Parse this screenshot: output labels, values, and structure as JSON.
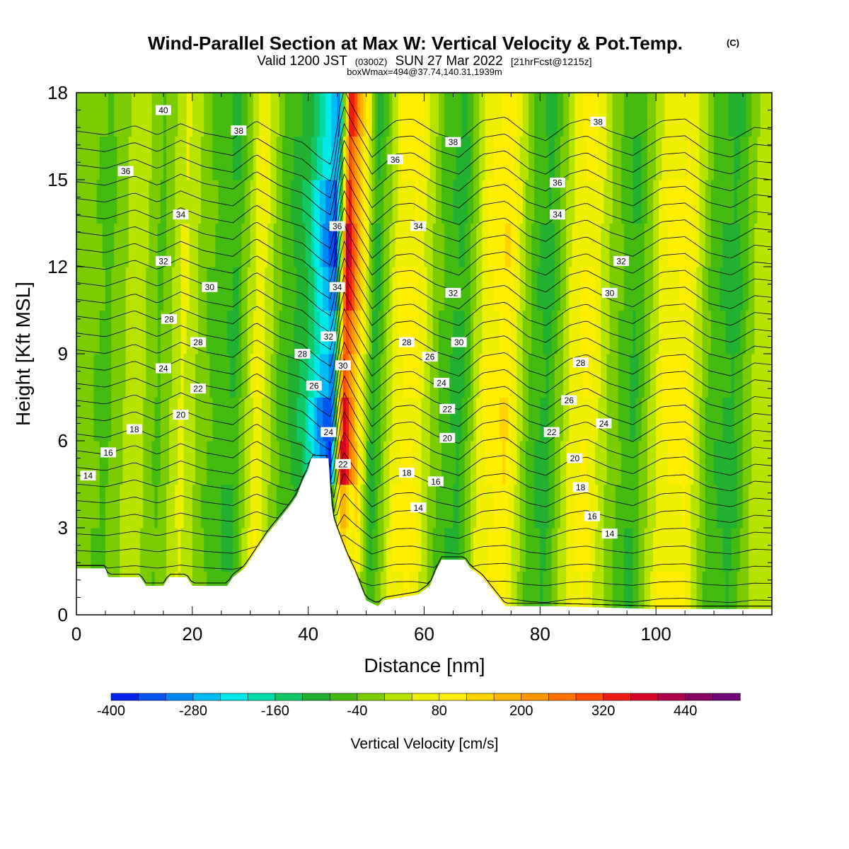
{
  "title": {
    "main": "Wind-Parallel Section at Max W: Vertical Velocity & Pot.Temp.",
    "copyright": "(C)",
    "valid_prefix": "Valid 1200 JST",
    "valid_zulu": "(0300Z)",
    "valid_date": "SUN 27 Mar 2022",
    "forecast": "[21hrFcst@1215z]",
    "boxinfo": "boxWmax=494@37.74,140.31,1939m"
  },
  "chart_data": {
    "type": "heatmap",
    "title": "Wind-Parallel Section at Max W: Vertical Velocity & Pot.Temp.",
    "xlabel": "Distance [nm]",
    "ylabel": "Height [Kft MSL]",
    "xlim": [
      0,
      120
    ],
    "ylim": [
      0,
      18
    ],
    "x_ticks": [
      0,
      20,
      40,
      60,
      80,
      100
    ],
    "y_ticks": [
      0,
      3,
      6,
      9,
      12,
      15,
      18
    ],
    "grid": false,
    "colorbar": {
      "title": "Vertical Velocity [cm/s]",
      "levels": [
        -400,
        -360,
        -320,
        -280,
        -240,
        -200,
        -160,
        -120,
        -80,
        -40,
        0,
        40,
        80,
        120,
        160,
        200,
        240,
        280,
        320,
        360,
        400,
        440,
        480,
        520
      ],
      "tick_labels": [
        -400,
        -280,
        -160,
        -40,
        80,
        200,
        320,
        440
      ],
      "colors": [
        "#0022ee",
        "#0055f0",
        "#0088f2",
        "#00bbf4",
        "#00e8e8",
        "#00ddaa",
        "#11c864",
        "#22b030",
        "#44bb11",
        "#7acc00",
        "#b6e400",
        "#eeee00",
        "#ffee00",
        "#ffd400",
        "#ffb400",
        "#ff9800",
        "#ff7200",
        "#ff4c00",
        "#f01c10",
        "#d80024",
        "#b0004a",
        "#880060",
        "#700078"
      ]
    },
    "velocity_field": [
      {
        "x": 0,
        "w": -20
      },
      {
        "x": 5,
        "w": -60
      },
      {
        "x": 10,
        "w": 40
      },
      {
        "x": 14,
        "w": -60
      },
      {
        "x": 18,
        "w": 60
      },
      {
        "x": 22,
        "w": -40
      },
      {
        "x": 27,
        "w": -100
      },
      {
        "x": 31,
        "w": 90
      },
      {
        "x": 35,
        "w": -60
      },
      {
        "x": 39,
        "w": -140
      },
      {
        "x": 42,
        "w": -300
      },
      {
        "x": 44,
        "w": -380
      },
      {
        "x": 46,
        "w": 440
      },
      {
        "x": 48,
        "w": 200
      },
      {
        "x": 51,
        "w": -120
      },
      {
        "x": 55,
        "w": 90
      },
      {
        "x": 58,
        "w": 110
      },
      {
        "x": 62,
        "w": -40
      },
      {
        "x": 66,
        "w": -120
      },
      {
        "x": 70,
        "w": 90
      },
      {
        "x": 74,
        "w": 130
      },
      {
        "x": 78,
        "w": -60
      },
      {
        "x": 81,
        "w": -120
      },
      {
        "x": 85,
        "w": 60
      },
      {
        "x": 88,
        "w": 110
      },
      {
        "x": 92,
        "w": -20
      },
      {
        "x": 96,
        "w": -100
      },
      {
        "x": 101,
        "w": 90
      },
      {
        "x": 105,
        "w": 110
      },
      {
        "x": 109,
        "w": -60
      },
      {
        "x": 113,
        "w": -120
      },
      {
        "x": 117,
        "w": 20
      },
      {
        "x": 120,
        "w": 0
      }
    ],
    "isotherm_labels": [
      {
        "x": 15,
        "y": 17.4,
        "text": "40"
      },
      {
        "x": 28,
        "y": 16.7,
        "text": "38"
      },
      {
        "x": 65,
        "y": 16.3,
        "text": "38"
      },
      {
        "x": 90,
        "y": 17.0,
        "text": "38"
      },
      {
        "x": 8.5,
        "y": 15.3,
        "text": "36"
      },
      {
        "x": 55,
        "y": 15.7,
        "text": "36"
      },
      {
        "x": 83,
        "y": 14.9,
        "text": "36"
      },
      {
        "x": 45,
        "y": 13.4,
        "text": "36"
      },
      {
        "x": 18,
        "y": 13.8,
        "text": "34"
      },
      {
        "x": 59,
        "y": 13.4,
        "text": "34"
      },
      {
        "x": 83,
        "y": 13.8,
        "text": "34"
      },
      {
        "x": 45,
        "y": 11.3,
        "text": "34"
      },
      {
        "x": 15,
        "y": 12.2,
        "text": "32"
      },
      {
        "x": 94,
        "y": 12.2,
        "text": "32"
      },
      {
        "x": 65,
        "y": 11.1,
        "text": "32"
      },
      {
        "x": 43.5,
        "y": 9.6,
        "text": "32"
      },
      {
        "x": 23,
        "y": 11.3,
        "text": "30"
      },
      {
        "x": 92,
        "y": 11.1,
        "text": "30"
      },
      {
        "x": 66,
        "y": 9.4,
        "text": "30"
      },
      {
        "x": 46,
        "y": 8.6,
        "text": "30"
      },
      {
        "x": 16,
        "y": 10.2,
        "text": "28"
      },
      {
        "x": 21,
        "y": 9.4,
        "text": "28"
      },
      {
        "x": 39,
        "y": 9.0,
        "text": "28"
      },
      {
        "x": 57,
        "y": 9.4,
        "text": "28"
      },
      {
        "x": 87,
        "y": 8.7,
        "text": "28"
      },
      {
        "x": 41,
        "y": 7.9,
        "text": "26"
      },
      {
        "x": 61,
        "y": 8.9,
        "text": "26"
      },
      {
        "x": 85,
        "y": 7.4,
        "text": "26"
      },
      {
        "x": 15,
        "y": 8.5,
        "text": "24"
      },
      {
        "x": 63,
        "y": 8.0,
        "text": "24"
      },
      {
        "x": 91,
        "y": 6.6,
        "text": "24"
      },
      {
        "x": 43.5,
        "y": 6.3,
        "text": "24"
      },
      {
        "x": 21,
        "y": 7.8,
        "text": "22"
      },
      {
        "x": 64,
        "y": 7.1,
        "text": "22"
      },
      {
        "x": 82,
        "y": 6.3,
        "text": "22"
      },
      {
        "x": 46,
        "y": 5.2,
        "text": "22"
      },
      {
        "x": 18,
        "y": 6.9,
        "text": "20"
      },
      {
        "x": 64,
        "y": 6.1,
        "text": "20"
      },
      {
        "x": 86,
        "y": 5.4,
        "text": "20"
      },
      {
        "x": 10,
        "y": 6.4,
        "text": "18"
      },
      {
        "x": 57,
        "y": 4.9,
        "text": "18"
      },
      {
        "x": 87,
        "y": 4.4,
        "text": "18"
      },
      {
        "x": 5.5,
        "y": 5.6,
        "text": "16"
      },
      {
        "x": 62,
        "y": 4.6,
        "text": "16"
      },
      {
        "x": 89,
        "y": 3.4,
        "text": "16"
      },
      {
        "x": 2,
        "y": 4.8,
        "text": "14"
      },
      {
        "x": 59,
        "y": 3.7,
        "text": "14"
      },
      {
        "x": 92,
        "y": 2.8,
        "text": "14"
      }
    ],
    "terrain": [
      {
        "x": 0,
        "y": 1.6
      },
      {
        "x": 5,
        "y": 1.6
      },
      {
        "x": 5.5,
        "y": 1.3
      },
      {
        "x": 11,
        "y": 1.3
      },
      {
        "x": 12,
        "y": 1.0
      },
      {
        "x": 15,
        "y": 1.0
      },
      {
        "x": 16,
        "y": 1.3
      },
      {
        "x": 19,
        "y": 1.3
      },
      {
        "x": 20,
        "y": 1.0
      },
      {
        "x": 26,
        "y": 1.0
      },
      {
        "x": 27,
        "y": 1.3
      },
      {
        "x": 29,
        "y": 1.6
      },
      {
        "x": 31,
        "y": 2.2
      },
      {
        "x": 33,
        "y": 2.8
      },
      {
        "x": 35,
        "y": 3.3
      },
      {
        "x": 37,
        "y": 3.8
      },
      {
        "x": 38,
        "y": 4.1
      },
      {
        "x": 39,
        "y": 4.6
      },
      {
        "x": 40,
        "y": 5.0
      },
      {
        "x": 40.5,
        "y": 5.4
      },
      {
        "x": 43.5,
        "y": 5.4
      },
      {
        "x": 44,
        "y": 3.8
      },
      {
        "x": 44.5,
        "y": 3.2
      },
      {
        "x": 46,
        "y": 2.4
      },
      {
        "x": 47,
        "y": 1.9
      },
      {
        "x": 48,
        "y": 1.5
      },
      {
        "x": 49,
        "y": 1.0
      },
      {
        "x": 50,
        "y": 0.5
      },
      {
        "x": 52,
        "y": 0.3
      },
      {
        "x": 53,
        "y": 0.5
      },
      {
        "x": 56,
        "y": 0.6
      },
      {
        "x": 59,
        "y": 0.7
      },
      {
        "x": 61,
        "y": 1.0
      },
      {
        "x": 62,
        "y": 1.5
      },
      {
        "x": 63,
        "y": 1.9
      },
      {
        "x": 67,
        "y": 1.9
      },
      {
        "x": 68,
        "y": 1.6
      },
      {
        "x": 70,
        "y": 1.3
      },
      {
        "x": 72,
        "y": 0.8
      },
      {
        "x": 74,
        "y": 0.3
      },
      {
        "x": 80,
        "y": 0.3
      },
      {
        "x": 82,
        "y": 0.3
      },
      {
        "x": 100,
        "y": 0.2
      },
      {
        "x": 120,
        "y": 0.2
      }
    ]
  }
}
